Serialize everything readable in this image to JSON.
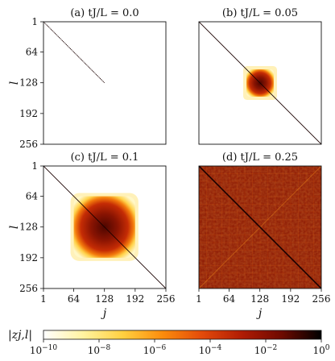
{
  "chart_data": {
    "type": "heatmap",
    "title": "",
    "xlabel": "j",
    "ylabel": "l",
    "x_ticks": [
      "1",
      "64",
      "128",
      "192",
      "256"
    ],
    "y_ticks": [
      "1",
      "64",
      "128",
      "192",
      "256"
    ],
    "xlim": [
      1,
      256
    ],
    "ylim": [
      1,
      256
    ],
    "y_axis_inverted": true,
    "panels": [
      {
        "title": "(a) tJ/L = 0.0",
        "tJL": 0.0,
        "support": [
          1,
          128
        ],
        "fill": "diagonal-only"
      },
      {
        "title": "(b) tJ/L = 0.05",
        "tJL": 0.05,
        "support": [
          100,
          157
        ],
        "fill": "diagonal-plus-central-block"
      },
      {
        "title": "(c) tJ/L = 0.1",
        "tJL": 0.1,
        "support": [
          64,
          192
        ],
        "fill": "diagonal-plus-central-block"
      },
      {
        "title": "(d) tJ/L = 0.25",
        "tJL": 0.25,
        "support": [
          1,
          256
        ],
        "fill": "full"
      }
    ],
    "colorbar": {
      "label": "|z_{j,l}|",
      "scale": "log",
      "range": [
        1e-10,
        1
      ],
      "tick_labels": [
        "10^−10",
        "10^−8",
        "10^−6",
        "10^−4",
        "10^−2",
        "10^0"
      ],
      "colormap": [
        "#ffffff",
        "#fff3a0",
        "#ffd040",
        "#fb8c0c",
        "#e34a0a",
        "#b01c04",
        "#6e0a00",
        "#000000"
      ]
    },
    "grid": false
  }
}
